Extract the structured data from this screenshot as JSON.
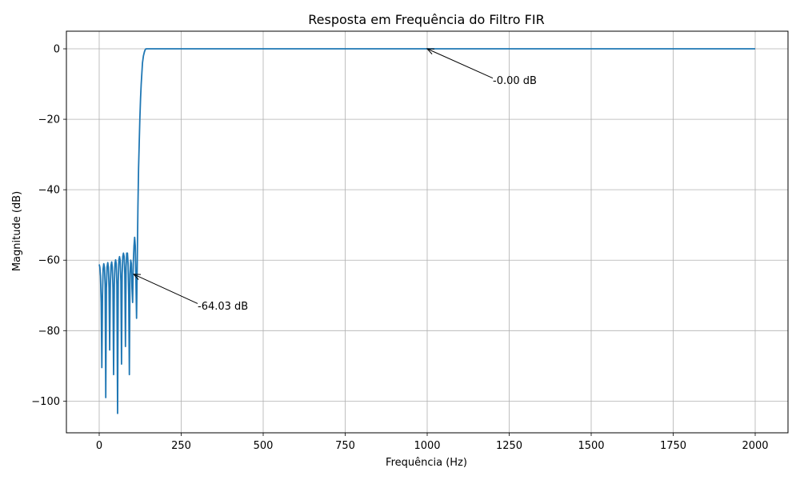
{
  "chart_data": {
    "type": "line",
    "title": "Resposta em Frequência do Filtro FIR",
    "xlabel": "Frequência (Hz)",
    "ylabel": "Magnitude (dB)",
    "xlim": [
      -100,
      2100
    ],
    "ylim": [
      -109,
      5
    ],
    "xticks": [
      0,
      250,
      500,
      750,
      1000,
      1250,
      1500,
      1750,
      2000
    ],
    "xtick_labels": [
      "0",
      "250",
      "500",
      "750",
      "1000",
      "1250",
      "1500",
      "1750",
      "2000"
    ],
    "yticks": [
      0,
      -20,
      -40,
      -60,
      -80,
      -100
    ],
    "ytick_labels": [
      "0",
      "−20",
      "−40",
      "−60",
      "−80",
      "−100"
    ],
    "grid": true,
    "series": [
      {
        "color": "#1f77b4",
        "x": [
          0,
          2,
          4,
          6,
          8,
          10,
          12,
          14,
          16,
          18,
          20,
          22,
          24,
          26,
          28,
          30,
          32,
          34,
          36,
          38,
          40,
          42,
          44,
          46,
          48,
          50,
          52,
          54,
          56,
          58,
          60,
          62,
          64,
          66,
          68,
          70,
          72,
          74,
          76,
          78,
          80,
          82,
          84,
          86,
          88,
          90,
          92,
          94,
          96,
          98,
          100,
          102,
          104,
          106,
          108,
          110,
          112,
          114,
          116,
          118,
          120,
          122,
          124,
          126,
          128,
          130,
          132,
          135,
          138,
          141,
          144,
          147,
          150,
          153,
          156,
          160,
          165,
          170,
          175,
          180,
          2000
        ],
        "y": [
          -61.2,
          -62,
          -64.5,
          -72,
          -90.5,
          -70,
          -62.5,
          -61,
          -62,
          -67,
          -99,
          -68,
          -62,
          -60.7,
          -62,
          -68,
          -85.5,
          -67,
          -61.5,
          -60.5,
          -62,
          -68,
          -92.5,
          -67,
          -61,
          -59.9,
          -61,
          -67,
          -103.5,
          -66,
          -60,
          -59,
          -60,
          -66,
          -89.5,
          -64,
          -59,
          -58,
          -59,
          -64,
          -84.5,
          -62,
          -58,
          -58,
          -61,
          -70,
          -92.5,
          -64,
          -60,
          -61,
          -68,
          -72,
          -61,
          -56,
          -53.5,
          -56,
          -66,
          -76.5,
          -60,
          -45,
          -34,
          -27,
          -20,
          -14,
          -10,
          -7,
          -4,
          -2,
          -0.8,
          -0.1,
          0,
          0,
          0,
          0,
          0,
          0,
          0,
          0,
          0,
          0,
          0
        ]
      }
    ],
    "annotations": [
      {
        "text": "-0.00 dB",
        "point": [
          1000,
          0
        ],
        "text_at": [
          1200,
          -9
        ]
      },
      {
        "text": "-64.03 dB",
        "point": [
          105,
          -64
        ],
        "text_at": [
          300,
          -73
        ]
      }
    ]
  }
}
